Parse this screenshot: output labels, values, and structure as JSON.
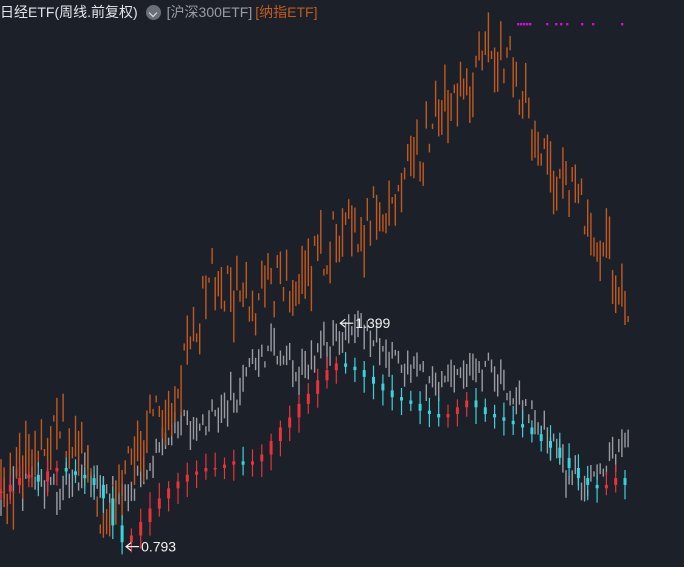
{
  "header": {
    "main_title": "日经ETF(周线.前复权)",
    "dropdown_icon": "chevron-down-icon",
    "compare": [
      {
        "label": "[沪深300ETF]",
        "color": "#9a9ca2"
      },
      {
        "label": "[纳指ETF]",
        "color": "#c25a1f"
      }
    ]
  },
  "colors": {
    "background": "#1c2029",
    "up": "#e8323c",
    "down": "#3cd2dc",
    "hs300": "#9a9ca2",
    "nasdaq": "#c25a1f",
    "markers": "#d20ad2"
  },
  "chart_data": {
    "type": "line",
    "series": [
      {
        "name": "日经ETF",
        "style": "candlestick",
        "values": [
          0.95,
          0.97,
          0.99,
          1.0,
          0.98,
          1.01,
          1.02,
          1.01,
          1.0,
          0.99,
          0.97,
          0.93,
          0.85,
          0.8,
          0.82,
          0.86,
          0.9,
          0.93,
          0.96,
          0.98,
          1.0,
          1.01,
          1.02,
          1.02,
          1.03,
          1.04,
          1.03,
          1.04,
          1.06,
          1.1,
          1.14,
          1.17,
          1.21,
          1.24,
          1.28,
          1.31,
          1.33,
          1.32,
          1.31,
          1.29,
          1.27,
          1.25,
          1.23,
          1.22,
          1.21,
          1.19,
          1.18,
          1.17,
          1.18,
          1.2,
          1.22,
          1.2,
          1.18,
          1.17,
          1.16,
          1.15,
          1.14,
          1.12,
          1.1,
          1.08,
          1.05,
          1.02,
          0.99,
          0.97,
          0.96,
          0.97,
          0.99,
          0.97
        ]
      },
      {
        "name": "沪深300ETF",
        "values": [
          0.93,
          0.95,
          0.97,
          0.99,
          1.0,
          0.98,
          0.95,
          0.97,
          1.0,
          1.02,
          1.0,
          0.98,
          0.95,
          0.92,
          0.94,
          0.98,
          1.02,
          1.06,
          1.1,
          1.13,
          1.15,
          1.16,
          1.17,
          1.19,
          1.21,
          1.24,
          1.28,
          1.32,
          1.35,
          1.38,
          1.37,
          1.33,
          1.3,
          1.33,
          1.36,
          1.38,
          1.4,
          1.41,
          1.42,
          1.42,
          1.4,
          1.38,
          1.35,
          1.33,
          1.31,
          1.29,
          1.27,
          1.26,
          1.28,
          1.31,
          1.32,
          1.33,
          1.31,
          1.29,
          1.27,
          1.25,
          1.22,
          1.18,
          1.13,
          1.08,
          1.04,
          1.01,
          0.99,
          0.98,
          1.0,
          1.03,
          1.06,
          1.08
        ]
      },
      {
        "name": "纳指ETF",
        "values": [
          0.92,
          0.95,
          0.99,
          1.02,
          1.04,
          1.06,
          1.09,
          1.13,
          1.11,
          1.03,
          0.96,
          0.91,
          0.92,
          0.97,
          1.04,
          1.1,
          1.14,
          1.18,
          1.23,
          1.28,
          1.34,
          1.42,
          1.51,
          1.6,
          1.57,
          1.54,
          1.51,
          1.5,
          1.52,
          1.55,
          1.57,
          1.59,
          1.61,
          1.63,
          1.66,
          1.68,
          1.7,
          1.71,
          1.72,
          1.74,
          1.77,
          1.8,
          1.84,
          1.88,
          1.92,
          1.96,
          2.0,
          2.04,
          2.08,
          2.12,
          2.16,
          2.2,
          2.24,
          2.27,
          2.26,
          2.22,
          2.15,
          2.05,
          1.96,
          1.89,
          1.83,
          1.86,
          1.81,
          1.75,
          1.69,
          1.66,
          1.6,
          1.53
        ]
      }
    ],
    "annotations": [
      {
        "label": "1.399",
        "value": 1.399
      },
      {
        "label": "0.793",
        "value": 0.793
      }
    ],
    "grid": false,
    "legend": "top-left"
  }
}
